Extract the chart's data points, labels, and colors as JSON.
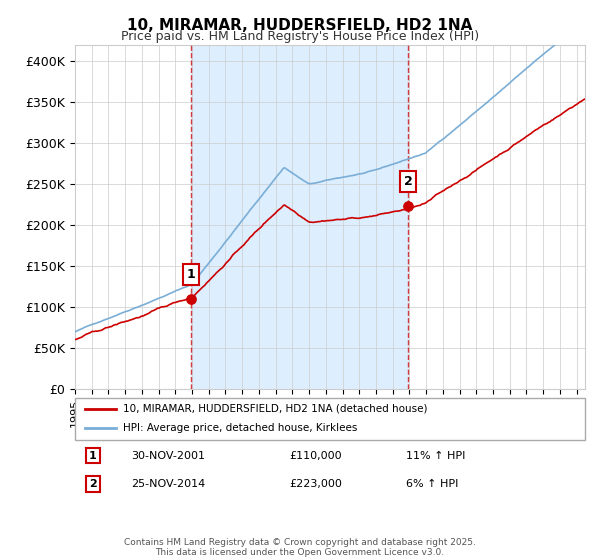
{
  "title": "10, MIRAMAR, HUDDERSFIELD, HD2 1NA",
  "subtitle": "Price paid vs. HM Land Registry's House Price Index (HPI)",
  "legend_line1": "10, MIRAMAR, HUDDERSFIELD, HD2 1NA (detached house)",
  "legend_line2": "HPI: Average price, detached house, Kirklees",
  "sale1_label": "1",
  "sale1_date": "30-NOV-2001",
  "sale1_price": "£110,000",
  "sale1_hpi": "11% ↑ HPI",
  "sale2_label": "2",
  "sale2_date": "25-NOV-2014",
  "sale2_price": "£223,000",
  "sale2_hpi": "6% ↑ HPI",
  "footer": "Contains HM Land Registry data © Crown copyright and database right 2025.\nThis data is licensed under the Open Government Licence v3.0.",
  "color_price": "#cc0000",
  "color_hpi": "#7aaed6",
  "color_shade": "#ddeeff",
  "ylim": [
    0,
    420000
  ],
  "yticks": [
    0,
    50000,
    100000,
    150000,
    200000,
    250000,
    300000,
    350000,
    400000
  ],
  "ytick_labels": [
    "£0",
    "£50K",
    "£100K",
    "£150K",
    "£200K",
    "£250K",
    "£300K",
    "£350K",
    "£400K"
  ],
  "xmin": 1995,
  "xmax": 2025.5,
  "sale1_x": 2001.917,
  "sale2_x": 2014.917,
  "sale1_y": 110000,
  "sale2_y": 223000
}
